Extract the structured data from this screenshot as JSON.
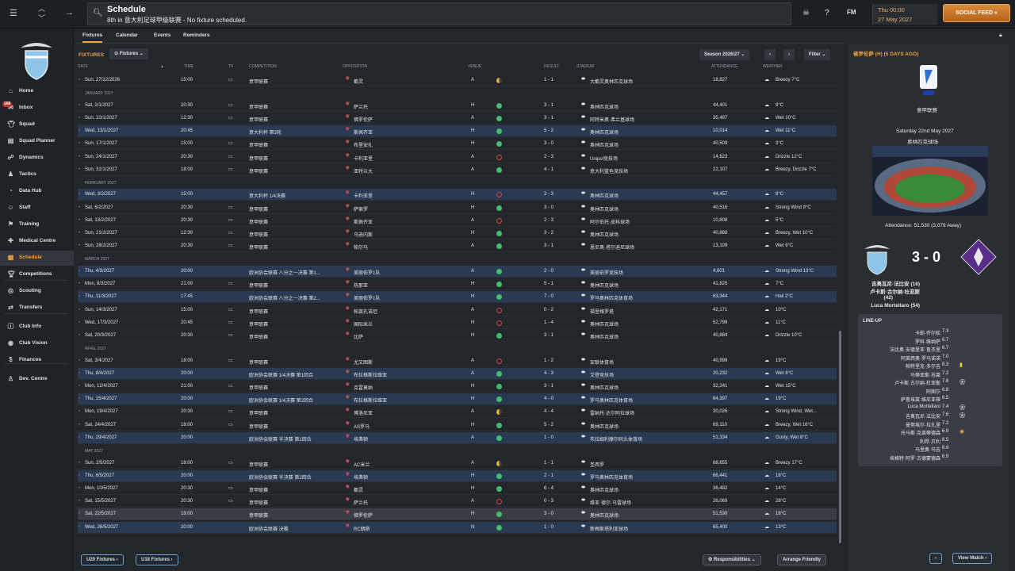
{
  "header": {
    "title": "Schedule",
    "subtitle": "8th in 意大利足球甲级联赛 - No fixture scheduled.",
    "date_time": "Thu 00:00",
    "date": "27 May 2027",
    "social_feed": "SOCIAL FEED",
    "fm_label": "FM"
  },
  "sidebar": {
    "items": [
      {
        "label": "Home",
        "icon": "home-icon"
      },
      {
        "label": "Inbox",
        "icon": "inbox-icon",
        "badge": "166"
      },
      {
        "label": "Squad",
        "icon": "shirt-icon"
      },
      {
        "label": "Squad Planner",
        "icon": "planner-icon"
      },
      {
        "label": "Dynamics",
        "icon": "dynamics-icon"
      },
      {
        "label": "Tactics",
        "icon": "tactics-icon"
      },
      {
        "label": "Data Hub",
        "icon": "data-hub-icon"
      },
      {
        "label": "Staff",
        "icon": "staff-icon"
      },
      {
        "label": "Training",
        "icon": "training-icon"
      },
      {
        "label": "Medical Centre",
        "icon": "medical-icon"
      },
      {
        "label": "Schedule",
        "icon": "calendar-icon",
        "active": true
      },
      {
        "label": "Competitions",
        "icon": "trophy-icon"
      },
      {
        "label": "Scouting",
        "icon": "scouting-icon"
      },
      {
        "label": "Transfers",
        "icon": "transfers-icon"
      },
      {
        "label": "Club Info",
        "icon": "info-icon"
      },
      {
        "label": "Club Vision",
        "icon": "vision-icon"
      },
      {
        "label": "Finances",
        "icon": "finances-icon"
      },
      {
        "label": "Dev. Centre",
        "icon": "dev-centre-icon"
      }
    ]
  },
  "tabs": [
    "Fixtures",
    "Calendar",
    "Events",
    "Reminders"
  ],
  "controls": {
    "fixtures_label": "FIXTURES",
    "fixtures_dropdown": "Fixtures",
    "season": "Season 2026/27",
    "filter": "Filter"
  },
  "columns": {
    "date": "DATE",
    "time": "TIME",
    "tv": "TV",
    "competition": "COMPETITION",
    "opposition": "OPPOSITION",
    "venue": "VENUE",
    "result": "RESULT",
    "stadium": "STADIUM",
    "attendance": "ATTENDANCE",
    "weather": "WEATHER"
  },
  "fixtures": [
    {
      "date": "Sun, 27/12/2026",
      "time": "15:00",
      "comp": "意甲联赛",
      "opp": "都灵",
      "venue": "A",
      "res": "d",
      "score": "1 - 1",
      "stadium": "大都灵奥林匹克球场",
      "att": "18,827",
      "weather": "Breezy 7°C",
      "tv": true
    },
    {
      "month": "JANUARY 2027"
    },
    {
      "date": "Sat, 2/1/2027",
      "time": "20:30",
      "comp": "意甲联赛",
      "opp": "萨兰托",
      "venue": "H",
      "res": "w",
      "score": "3 - 1",
      "stadium": "奥林匹克球场",
      "att": "44,401",
      "weather": "9°C",
      "tv": true
    },
    {
      "date": "Sun, 10/1/2027",
      "time": "12:30",
      "comp": "意甲联赛",
      "opp": "佛罗伦萨",
      "venue": "A",
      "res": "w",
      "score": "3 - 1",
      "stadium": "阿特米奥·弗兰基球场",
      "att": "35,487",
      "weather": "Wet 10°C",
      "tv": true
    },
    {
      "date": "Wed, 13/1/2027",
      "time": "20:45",
      "comp": "意大利杯 第3轮",
      "opp": "斯佩齐亚",
      "venue": "H",
      "res": "w",
      "score": "5 - 2",
      "stadium": "奥林匹克球场",
      "att": "10,014",
      "weather": "Wet 11°C",
      "alt": true
    },
    {
      "date": "Sun, 17/1/2027",
      "time": "15:00",
      "comp": "意甲联赛",
      "opp": "布里安扎",
      "venue": "H",
      "res": "w",
      "score": "3 - 0",
      "stadium": "奥林匹克球场",
      "att": "40,509",
      "weather": "3°C",
      "tv": true
    },
    {
      "date": "Sun, 24/1/2027",
      "time": "20:30",
      "comp": "意甲联赛",
      "opp": "卡利亚里",
      "venue": "A",
      "res": "l",
      "score": "2 - 3",
      "stadium": "Unipol竞技场",
      "att": "14,823",
      "weather": "Drizzle 12°C",
      "tv": true
    },
    {
      "date": "Sun, 31/1/2027",
      "time": "18:00",
      "comp": "意甲联赛",
      "opp": "亚特兰大",
      "venue": "A",
      "res": "w",
      "score": "4 - 1",
      "stadium": "意大利蓝色竞技场",
      "att": "22,107",
      "weather": "Breezy, Drizzle 7°C",
      "tv": true
    },
    {
      "month": "FEBRUARY 2027"
    },
    {
      "date": "Wed, 3/2/2027",
      "time": "15:00",
      "comp": "意大利杯 1/4决赛",
      "opp": "卡利亚里",
      "venue": "H",
      "res": "l",
      "score": "2 - 3",
      "stadium": "奥林匹克球场",
      "att": "44,457",
      "weather": "9°C",
      "alt": true
    },
    {
      "date": "Sat, 6/2/2027",
      "time": "20:30",
      "comp": "意甲联赛",
      "opp": "萨索罗",
      "venue": "H",
      "res": "w",
      "score": "3 - 0",
      "stadium": "奥林匹克球场",
      "att": "40,516",
      "weather": "Strong Wind 9°C",
      "tv": true
    },
    {
      "date": "Sat, 13/2/2027",
      "time": "20:30",
      "comp": "意甲联赛",
      "opp": "斯佩齐亚",
      "venue": "A",
      "res": "l",
      "score": "2 - 3",
      "stadium": "阿尔伯托·皮科球场",
      "att": "10,808",
      "weather": "5°C",
      "tv": true
    },
    {
      "date": "Sun, 21/2/2027",
      "time": "12:30",
      "comp": "意甲联赛",
      "opp": "乌迪内斯",
      "venue": "H",
      "res": "w",
      "score": "3 - 2",
      "stadium": "奥林匹克球场",
      "att": "40,888",
      "weather": "Breezy, Wet 10°C",
      "tv": true
    },
    {
      "date": "Sun, 28/2/2027",
      "time": "20:30",
      "comp": "意甲联赛",
      "opp": "帕尔马",
      "venue": "A",
      "res": "w",
      "score": "3 - 1",
      "stadium": "恩尼奥·塔尔迪尼球场",
      "att": "13,109",
      "weather": "Wet 6°C",
      "tv": true
    },
    {
      "month": "MARCH 2027"
    },
    {
      "date": "Thu, 4/3/2027",
      "time": "20:00",
      "comp": "欧洲协会联赛 八分之一决赛 第1...",
      "opp": "美丽伯罗1队",
      "venue": "A",
      "res": "w",
      "score": "2 - 0",
      "stadium": "美丽伯罗竞技场",
      "att": "4,601",
      "weather": "Strong Wind 13°C",
      "alt": true
    },
    {
      "date": "Mon, 8/3/2027",
      "time": "21:00",
      "comp": "意甲联赛",
      "opp": "热那亚",
      "venue": "H",
      "res": "w",
      "score": "5 - 1",
      "stadium": "奥林匹克球场",
      "att": "41,825",
      "weather": "7°C",
      "tv": true
    },
    {
      "date": "Thu, 11/3/2027",
      "time": "17:45",
      "comp": "欧洲协会联赛 八分之一决赛 第2...",
      "opp": "美丽伯罗1队",
      "venue": "H",
      "res": "w",
      "score": "7 - 0",
      "stadium": "罗马奥林匹克体育场",
      "att": "63,344",
      "weather": "Hail 2°C",
      "alt": true
    },
    {
      "date": "Sun, 14/3/2027",
      "time": "15:00",
      "comp": "意甲联赛",
      "opp": "帕莱孔诺坦",
      "venue": "A",
      "res": "l",
      "score": "0 - 2",
      "stadium": "福里格罗塔",
      "att": "42,171",
      "weather": "10°C",
      "tv": true
    },
    {
      "date": "Wed, 17/3/2027",
      "time": "20:45",
      "comp": "意甲联赛",
      "opp": "国际米兰",
      "venue": "H",
      "res": "l",
      "score": "1 - 4",
      "stadium": "奥林匹克球场",
      "att": "52,799",
      "weather": "11°C",
      "tv": true
    },
    {
      "date": "Sat, 20/3/2027",
      "time": "20:30",
      "comp": "意甲联赛",
      "opp": "比萨",
      "venue": "H",
      "res": "w",
      "score": "3 - 1",
      "stadium": "奥林匹克球场",
      "att": "40,884",
      "weather": "Drizzle 10°C",
      "tv": true
    },
    {
      "month": "APRIL 2027"
    },
    {
      "date": "Sat, 3/4/2027",
      "time": "18:00",
      "comp": "意甲联赛",
      "opp": "尤文图斯",
      "venue": "A",
      "res": "l",
      "score": "1 - 2",
      "stadium": "安联体育场",
      "att": "40,999",
      "weather": "19°C",
      "tv": true
    },
    {
      "date": "Thu, 8/4/2027",
      "time": "20:00",
      "comp": "欧洲协会联赛 1/4决赛 第1回合",
      "opp": "布拉格斯拉维亚",
      "venue": "A",
      "res": "w",
      "score": "4 - 3",
      "stadium": "艾登竞技场",
      "att": "20,232",
      "weather": "Wet 8°C",
      "alt": true
    },
    {
      "date": "Mon, 12/4/2027",
      "time": "21:00",
      "comp": "意甲联赛",
      "opp": "克雷莫纳",
      "venue": "H",
      "res": "w",
      "score": "3 - 1",
      "stadium": "奥林匹克球场",
      "att": "32,241",
      "weather": "Wet 15°C",
      "tv": true
    },
    {
      "date": "Thu, 15/4/2027",
      "time": "20:00",
      "comp": "欧洲协会联赛 1/4决赛 第2回合",
      "opp": "布拉格斯拉维亚",
      "venue": "H",
      "res": "w",
      "score": "4 - 0",
      "stadium": "罗马奥林匹克体育场",
      "att": "64,397",
      "weather": "19°C",
      "alt": true
    },
    {
      "date": "Mon, 19/4/2027",
      "time": "20:30",
      "comp": "意甲联赛",
      "opp": "博洛尼亚",
      "venue": "A",
      "res": "d",
      "score": "4 - 4",
      "stadium": "雷纳托·达尔阿拉球场",
      "att": "30,026",
      "weather": "Strong Wind, Wet...",
      "tv": true
    },
    {
      "date": "Sat, 24/4/2027",
      "time": "18:00",
      "comp": "意甲联赛",
      "opp": "AS罗马",
      "venue": "H",
      "res": "w",
      "score": "5 - 2",
      "stadium": "奥林匹克球场",
      "att": "69,110",
      "weather": "Breezy, Wet 16°C",
      "tv": true
    },
    {
      "date": "Thu, 29/4/2027",
      "time": "20:00",
      "comp": "欧洲协会联赛 半决赛 第1回合",
      "opp": "埃弗顿",
      "venue": "A",
      "res": "w",
      "score": "1 - 0",
      "stadium": "布拉姆利摩尔码头体育场",
      "att": "51,334",
      "weather": "Gusty, Wet 8°C",
      "alt": true
    },
    {
      "month": "MAY 2027"
    },
    {
      "date": "Sun, 2/5/2027",
      "time": "18:00",
      "comp": "意甲联赛",
      "opp": "AC米兰",
      "venue": "A",
      "res": "d",
      "score": "1 - 1",
      "stadium": "圣西罗",
      "att": "68,655",
      "weather": "Breezy 17°C",
      "tv": true
    },
    {
      "date": "Thu, 6/5/2027",
      "time": "20:00",
      "comp": "欧洲协会联赛 半决赛 第2回合",
      "opp": "埃弗顿",
      "venue": "H",
      "res": "w",
      "score": "2 - 1",
      "stadium": "罗马奥林匹克体育场",
      "att": "66,441",
      "weather": "18°C",
      "alt": true
    },
    {
      "date": "Mon, 10/5/2027",
      "time": "20:30",
      "comp": "意甲联赛",
      "opp": "都灵",
      "venue": "H",
      "res": "w",
      "score": "6 - 4",
      "stadium": "奥林匹克球场",
      "att": "36,482",
      "weather": "14°C",
      "tv": true
    },
    {
      "date": "Sat, 15/5/2027",
      "time": "20:30",
      "comp": "意甲联赛",
      "opp": "萨兰托",
      "venue": "A",
      "res": "l",
      "score": "0 - 3",
      "stadium": "维亚·德尔·马雷球场",
      "att": "26,069",
      "weather": "28°C",
      "tv": true
    },
    {
      "date": "Sat, 22/5/2027",
      "time": "18:00",
      "comp": "意甲联赛",
      "opp": "佛罗伦萨",
      "venue": "H",
      "res": "w",
      "score": "3 - 0",
      "stadium": "奥林匹克球场",
      "att": "51,530",
      "weather": "18°C",
      "sel": true
    },
    {
      "date": "Wed, 26/5/2027",
      "time": "20:00",
      "comp": "欧洲协会联赛 决赛",
      "opp": "RC朗斯",
      "venue": "N",
      "res": "w",
      "score": "1 - 0",
      "stadium": "新梅斯塔利亚球场",
      "att": "65,400",
      "weather": "13°C",
      "alt": true
    }
  ],
  "footer": {
    "u20": "U20 Fixtures",
    "u18": "U18 Fixtures",
    "responsibilities": "Responsibilities",
    "arrange": "Arrange Friendly",
    "view_match": "View Match"
  },
  "panel": {
    "title": "佛罗伦萨 (H) (5 DAYS AGO)",
    "competition": "意甲联赛",
    "match_date": "Saturday 22nd May 2027",
    "stadium": "奥林匹克球场",
    "attendance": "Attendance: 51,530 (3,079 Away)",
    "score": "3 - 0",
    "scorers": [
      "吉奥瓦尼·法比安 (16)",
      "卢卡斯·古尔纳·杜亚斯",
      "(42)",
      "Luca Mortellaro (54)"
    ],
    "lineup_title": "LINE-UP",
    "lineup": [
      {
        "name": "卡勒·乔尔松",
        "rating": "7.3"
      },
      {
        "name": "罗科·维纳萨",
        "rating": "6.7"
      },
      {
        "name": "法比奥·安德里亚·鲁杰里",
        "rating": "6.7"
      },
      {
        "name": "阿莱西奥·罗马诺诺",
        "rating": "7.0"
      },
      {
        "name": "帕特里克·多尔吉",
        "rating": "8.3",
        "mark": "yellow"
      },
      {
        "name": "马蒂亚斯·苏莱",
        "rating": "7.2"
      },
      {
        "name": "卢卡斯·古尔纳·杜亚斯",
        "rating": "7.6",
        "mark": "ball"
      },
      {
        "name": "阿图尔",
        "rating": "6.8"
      },
      {
        "name": "萨鲁埃莱·维尼亚蒂",
        "rating": "6.5"
      },
      {
        "name": "Luca Mortellaro",
        "rating": "7.4",
        "mark": "ball"
      },
      {
        "name": "吉奥瓦尼·法比安",
        "rating": "7.6",
        "mark": "ball"
      },
      {
        "name": "曼努埃尔·拉扎里",
        "rating": "7.2"
      },
      {
        "name": "托马斯·克莱蒂德森",
        "rating": "6.9",
        "mark": "sub"
      },
      {
        "name": "利昂·贝利",
        "rating": "6.5"
      },
      {
        "name": "马里奥·马吉",
        "rating": "6.9"
      },
      {
        "name": "埃格特·阿罗·古德蒙德森",
        "rating": "6.9"
      }
    ]
  }
}
